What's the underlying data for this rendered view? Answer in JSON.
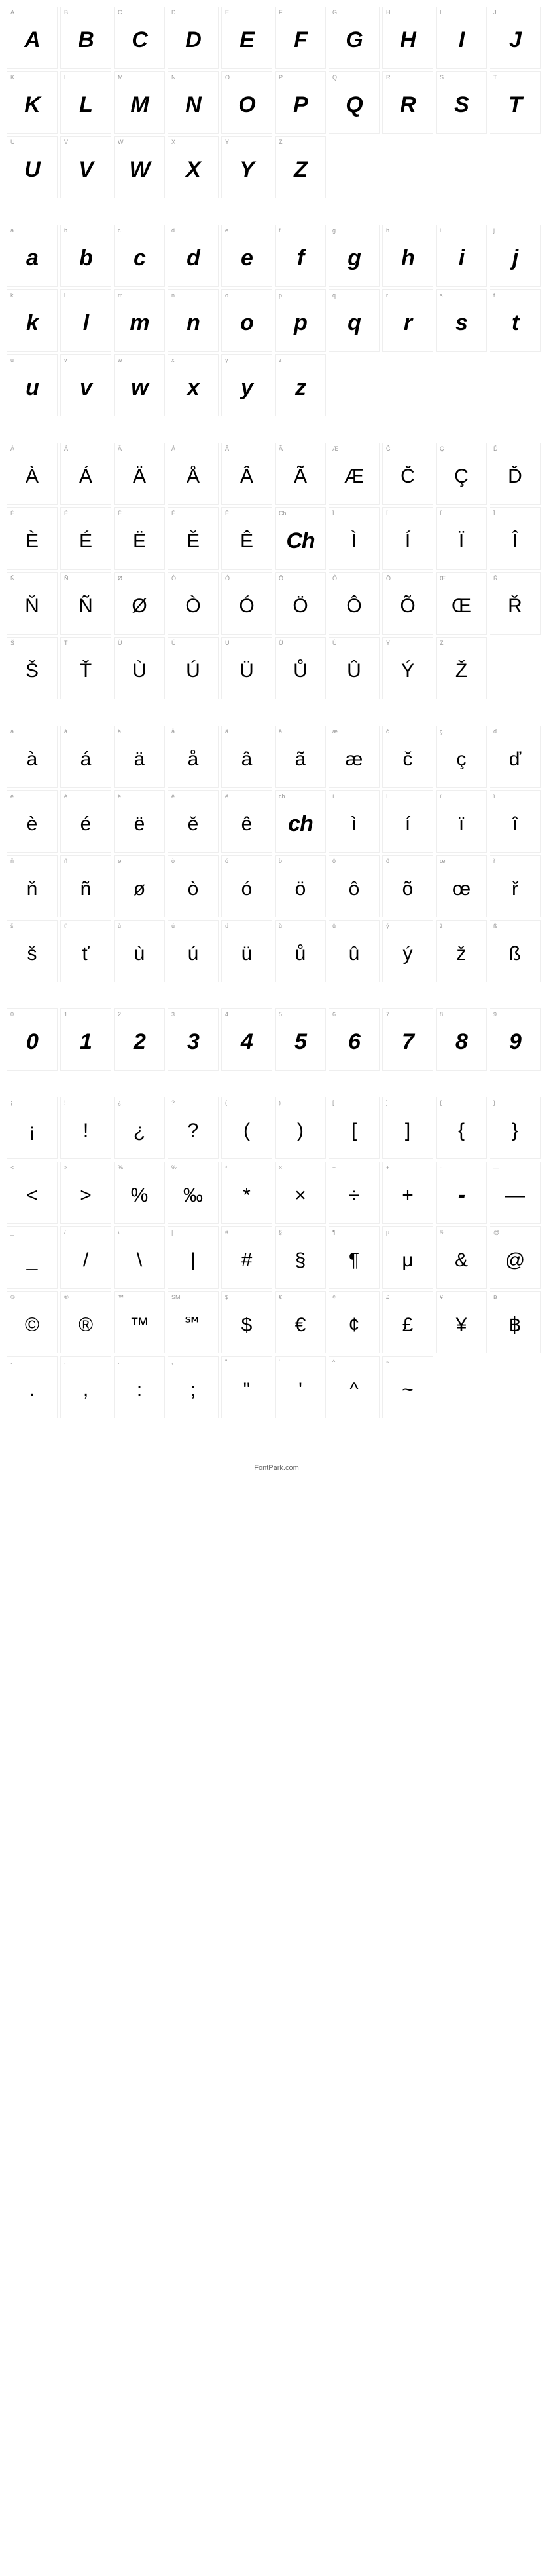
{
  "footer": "FontPark.com",
  "sections": [
    {
      "style": "bold",
      "cells": [
        {
          "label": "A",
          "glyph": "A"
        },
        {
          "label": "B",
          "glyph": "B"
        },
        {
          "label": "C",
          "glyph": "C"
        },
        {
          "label": "D",
          "glyph": "D"
        },
        {
          "label": "E",
          "glyph": "E"
        },
        {
          "label": "F",
          "glyph": "F"
        },
        {
          "label": "G",
          "glyph": "G"
        },
        {
          "label": "H",
          "glyph": "H"
        },
        {
          "label": "I",
          "glyph": "I"
        },
        {
          "label": "J",
          "glyph": "J"
        },
        {
          "label": "K",
          "glyph": "K"
        },
        {
          "label": "L",
          "glyph": "L"
        },
        {
          "label": "M",
          "glyph": "M"
        },
        {
          "label": "N",
          "glyph": "N"
        },
        {
          "label": "O",
          "glyph": "O"
        },
        {
          "label": "P",
          "glyph": "P"
        },
        {
          "label": "Q",
          "glyph": "Q"
        },
        {
          "label": "R",
          "glyph": "R"
        },
        {
          "label": "S",
          "glyph": "S"
        },
        {
          "label": "T",
          "glyph": "T"
        },
        {
          "label": "U",
          "glyph": "U"
        },
        {
          "label": "V",
          "glyph": "V"
        },
        {
          "label": "W",
          "glyph": "W"
        },
        {
          "label": "X",
          "glyph": "X"
        },
        {
          "label": "Y",
          "glyph": "Y"
        },
        {
          "label": "Z",
          "glyph": "Z"
        }
      ]
    },
    {
      "style": "bold",
      "cells": [
        {
          "label": "a",
          "glyph": "a"
        },
        {
          "label": "b",
          "glyph": "b"
        },
        {
          "label": "c",
          "glyph": "c"
        },
        {
          "label": "d",
          "glyph": "d"
        },
        {
          "label": "e",
          "glyph": "e"
        },
        {
          "label": "f",
          "glyph": "f"
        },
        {
          "label": "g",
          "glyph": "g"
        },
        {
          "label": "h",
          "glyph": "h"
        },
        {
          "label": "i",
          "glyph": "i"
        },
        {
          "label": "j",
          "glyph": "j"
        },
        {
          "label": "k",
          "glyph": "k"
        },
        {
          "label": "l",
          "glyph": "l"
        },
        {
          "label": "m",
          "glyph": "m"
        },
        {
          "label": "n",
          "glyph": "n"
        },
        {
          "label": "o",
          "glyph": "o"
        },
        {
          "label": "p",
          "glyph": "p"
        },
        {
          "label": "q",
          "glyph": "q"
        },
        {
          "label": "r",
          "glyph": "r"
        },
        {
          "label": "s",
          "glyph": "s"
        },
        {
          "label": "t",
          "glyph": "t"
        },
        {
          "label": "u",
          "glyph": "u"
        },
        {
          "label": "v",
          "glyph": "v"
        },
        {
          "label": "w",
          "glyph": "w"
        },
        {
          "label": "x",
          "glyph": "x"
        },
        {
          "label": "y",
          "glyph": "y"
        },
        {
          "label": "z",
          "glyph": "z"
        }
      ]
    },
    {
      "style": "accent",
      "cells": [
        {
          "label": "À",
          "glyph": "À"
        },
        {
          "label": "Á",
          "glyph": "Á"
        },
        {
          "label": "Ä",
          "glyph": "Ä"
        },
        {
          "label": "Å",
          "glyph": "Å"
        },
        {
          "label": "Â",
          "glyph": "Â"
        },
        {
          "label": "Ã",
          "glyph": "Ã"
        },
        {
          "label": "Æ",
          "glyph": "Æ"
        },
        {
          "label": "Č",
          "glyph": "Č"
        },
        {
          "label": "Ç",
          "glyph": "Ç"
        },
        {
          "label": "Ď",
          "glyph": "Ď"
        },
        {
          "label": "È",
          "glyph": "È"
        },
        {
          "label": "É",
          "glyph": "É"
        },
        {
          "label": "Ë",
          "glyph": "Ë"
        },
        {
          "label": "Ě",
          "glyph": "Ě"
        },
        {
          "label": "Ê",
          "glyph": "Ê"
        },
        {
          "label": "Ch",
          "glyph": "Ch",
          "bold": true
        },
        {
          "label": "Ì",
          "glyph": "Ì"
        },
        {
          "label": "Í",
          "glyph": "Í"
        },
        {
          "label": "Ï",
          "glyph": "Ï"
        },
        {
          "label": "Î",
          "glyph": "Î"
        },
        {
          "label": "Ň",
          "glyph": "Ň"
        },
        {
          "label": "Ñ",
          "glyph": "Ñ"
        },
        {
          "label": "Ø",
          "glyph": "Ø"
        },
        {
          "label": "Ò",
          "glyph": "Ò"
        },
        {
          "label": "Ó",
          "glyph": "Ó"
        },
        {
          "label": "Ö",
          "glyph": "Ö"
        },
        {
          "label": "Ô",
          "glyph": "Ô"
        },
        {
          "label": "Õ",
          "glyph": "Õ"
        },
        {
          "label": "Œ",
          "glyph": "Œ"
        },
        {
          "label": "Ř",
          "glyph": "Ř"
        },
        {
          "label": "Š",
          "glyph": "Š"
        },
        {
          "label": "Ť",
          "glyph": "Ť"
        },
        {
          "label": "Ù",
          "glyph": "Ù"
        },
        {
          "label": "Ú",
          "glyph": "Ú"
        },
        {
          "label": "Ü",
          "glyph": "Ü"
        },
        {
          "label": "Ů",
          "glyph": "Ů"
        },
        {
          "label": "Û",
          "glyph": "Û"
        },
        {
          "label": "Ý",
          "glyph": "Ý"
        },
        {
          "label": "Ž",
          "glyph": "Ž"
        }
      ]
    },
    {
      "style": "accent",
      "cells": [
        {
          "label": "à",
          "glyph": "à"
        },
        {
          "label": "á",
          "glyph": "á"
        },
        {
          "label": "ä",
          "glyph": "ä"
        },
        {
          "label": "å",
          "glyph": "å"
        },
        {
          "label": "â",
          "glyph": "â"
        },
        {
          "label": "ã",
          "glyph": "ã"
        },
        {
          "label": "æ",
          "glyph": "æ"
        },
        {
          "label": "č",
          "glyph": "č"
        },
        {
          "label": "ç",
          "glyph": "ç"
        },
        {
          "label": "ď",
          "glyph": "ď"
        },
        {
          "label": "è",
          "glyph": "è"
        },
        {
          "label": "é",
          "glyph": "é"
        },
        {
          "label": "ë",
          "glyph": "ë"
        },
        {
          "label": "ě",
          "glyph": "ě"
        },
        {
          "label": "ê",
          "glyph": "ê"
        },
        {
          "label": "ch",
          "glyph": "ch",
          "bold": true
        },
        {
          "label": "ì",
          "glyph": "ì"
        },
        {
          "label": "í",
          "glyph": "í"
        },
        {
          "label": "ï",
          "glyph": "ï"
        },
        {
          "label": "î",
          "glyph": "î"
        },
        {
          "label": "ň",
          "glyph": "ň"
        },
        {
          "label": "ñ",
          "glyph": "ñ"
        },
        {
          "label": "ø",
          "glyph": "ø"
        },
        {
          "label": "ò",
          "glyph": "ò"
        },
        {
          "label": "ó",
          "glyph": "ó"
        },
        {
          "label": "ö",
          "glyph": "ö"
        },
        {
          "label": "ô",
          "glyph": "ô"
        },
        {
          "label": "õ",
          "glyph": "õ"
        },
        {
          "label": "œ",
          "glyph": "œ"
        },
        {
          "label": "ř",
          "glyph": "ř"
        },
        {
          "label": "š",
          "glyph": "š"
        },
        {
          "label": "ť",
          "glyph": "ť"
        },
        {
          "label": "ù",
          "glyph": "ù"
        },
        {
          "label": "ú",
          "glyph": "ú"
        },
        {
          "label": "ü",
          "glyph": "ü"
        },
        {
          "label": "ů",
          "glyph": "ů"
        },
        {
          "label": "û",
          "glyph": "û"
        },
        {
          "label": "ý",
          "glyph": "ý"
        },
        {
          "label": "ž",
          "glyph": "ž"
        },
        {
          "label": "ß",
          "glyph": "ß"
        }
      ]
    },
    {
      "style": "bold",
      "cells": [
        {
          "label": "0",
          "glyph": "0"
        },
        {
          "label": "1",
          "glyph": "1"
        },
        {
          "label": "2",
          "glyph": "2"
        },
        {
          "label": "3",
          "glyph": "3"
        },
        {
          "label": "4",
          "glyph": "4"
        },
        {
          "label": "5",
          "glyph": "5"
        },
        {
          "label": "6",
          "glyph": "6"
        },
        {
          "label": "7",
          "glyph": "7"
        },
        {
          "label": "8",
          "glyph": "8"
        },
        {
          "label": "9",
          "glyph": "9"
        }
      ]
    },
    {
      "style": "accent",
      "cells": [
        {
          "label": "¡",
          "glyph": "¡"
        },
        {
          "label": "!",
          "glyph": "!"
        },
        {
          "label": "¿",
          "glyph": "¿"
        },
        {
          "label": "?",
          "glyph": "?"
        },
        {
          "label": "(",
          "glyph": "("
        },
        {
          "label": ")",
          "glyph": ")"
        },
        {
          "label": "[",
          "glyph": "["
        },
        {
          "label": "]",
          "glyph": "]"
        },
        {
          "label": "{",
          "glyph": "{"
        },
        {
          "label": "}",
          "glyph": "}"
        },
        {
          "label": "<",
          "glyph": "<"
        },
        {
          "label": ">",
          "glyph": ">"
        },
        {
          "label": "%",
          "glyph": "%"
        },
        {
          "label": "‰",
          "glyph": "‰"
        },
        {
          "label": "*",
          "glyph": "*"
        },
        {
          "label": "×",
          "glyph": "×"
        },
        {
          "label": "÷",
          "glyph": "÷"
        },
        {
          "label": "+",
          "glyph": "+"
        },
        {
          "label": "-",
          "glyph": "-",
          "bold": true
        },
        {
          "label": "—",
          "glyph": "—"
        },
        {
          "label": "_",
          "glyph": "_"
        },
        {
          "label": "/",
          "glyph": "/"
        },
        {
          "label": "\\",
          "glyph": "\\"
        },
        {
          "label": "|",
          "glyph": "|"
        },
        {
          "label": "#",
          "glyph": "#"
        },
        {
          "label": "§",
          "glyph": "§"
        },
        {
          "label": "¶",
          "glyph": "¶"
        },
        {
          "label": "μ",
          "glyph": "μ"
        },
        {
          "label": "&",
          "glyph": "&"
        },
        {
          "label": "@",
          "glyph": "@"
        },
        {
          "label": "©",
          "glyph": "©"
        },
        {
          "label": "®",
          "glyph": "®"
        },
        {
          "label": "™",
          "glyph": "™"
        },
        {
          "label": "SM",
          "glyph": "℠"
        },
        {
          "label": "$",
          "glyph": "$"
        },
        {
          "label": "€",
          "glyph": "€"
        },
        {
          "label": "¢",
          "glyph": "¢"
        },
        {
          "label": "£",
          "glyph": "£"
        },
        {
          "label": "¥",
          "glyph": "¥"
        },
        {
          "label": "฿",
          "glyph": "฿"
        },
        {
          "label": ".",
          "glyph": "."
        },
        {
          "label": ",",
          "glyph": ","
        },
        {
          "label": ":",
          "glyph": ":"
        },
        {
          "label": ";",
          "glyph": ";"
        },
        {
          "label": "\"",
          "glyph": "\""
        },
        {
          "label": "'",
          "glyph": "'"
        },
        {
          "label": "^",
          "glyph": "^"
        },
        {
          "label": "~",
          "glyph": "~"
        }
      ]
    }
  ]
}
